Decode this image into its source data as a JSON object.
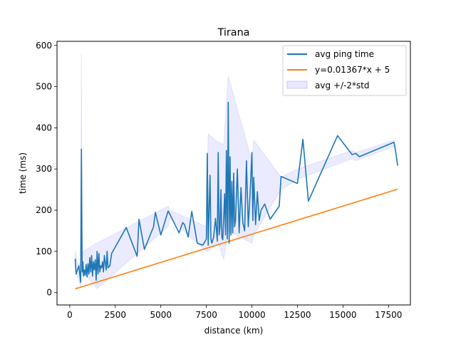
{
  "chart_data": {
    "type": "line",
    "title": "Tirana",
    "xlabel": "distance (km)",
    "ylabel": "time (ms)",
    "xlim": [
      -700,
      18700
    ],
    "ylim": [
      -30,
      610
    ],
    "xticks": [
      0,
      2500,
      5000,
      7500,
      10000,
      12500,
      15000,
      17500
    ],
    "yticks": [
      0,
      100,
      200,
      300,
      400,
      500,
      600
    ],
    "grid": false,
    "legend_position": "top-right",
    "series": [
      {
        "name": "avg ping time",
        "color": "#1f77b4",
        "x": [
          300,
          350,
          420,
          500,
          560,
          600,
          640,
          680,
          720,
          760,
          800,
          850,
          900,
          950,
          1000,
          1050,
          1100,
          1150,
          1200,
          1250,
          1300,
          1350,
          1400,
          1450,
          1500,
          1550,
          1600,
          1650,
          1700,
          1750,
          1800,
          1850,
          1900,
          2000,
          2050,
          2100,
          2200,
          2300,
          3100,
          3700,
          3800,
          4100,
          4600,
          4700,
          5000,
          5400,
          5500,
          6000,
          6200,
          6300,
          6500,
          6700,
          7000,
          7300,
          7500,
          7550,
          7600,
          7700,
          7750,
          7800,
          7900,
          8000,
          8100,
          8150,
          8200,
          8250,
          8300,
          8350,
          8400,
          8450,
          8500,
          8550,
          8600,
          8650,
          8700,
          8750,
          8800,
          8850,
          8900,
          8950,
          9000,
          9050,
          9100,
          9200,
          9300,
          9400,
          9500,
          9600,
          9700,
          9800,
          9900,
          10000,
          10050,
          10100,
          10200,
          10300,
          10400,
          10500,
          10700,
          11000,
          11500,
          11600,
          12500,
          12800,
          13100,
          14700,
          15500,
          15700,
          15900,
          17800,
          17900,
          18000
        ],
        "y": [
          82,
          45,
          55,
          65,
          40,
          25,
          348,
          50,
          75,
          40,
          55,
          42,
          68,
          38,
          70,
          45,
          85,
          50,
          90,
          40,
          75,
          55,
          80,
          30,
          100,
          45,
          95,
          50,
          65,
          60,
          75,
          50,
          90,
          55,
          100,
          60,
          65,
          95,
          158,
          88,
          178,
          105,
          160,
          195,
          140,
          198,
          190,
          145,
          170,
          165,
          135,
          197,
          120,
          115,
          130,
          338,
          115,
          285,
          130,
          120,
          135,
          180,
          125,
          340,
          140,
          160,
          250,
          135,
          128,
          180,
          240,
          140,
          345,
          130,
          462,
          120,
          330,
          140,
          270,
          145,
          290,
          160,
          175,
          300,
          145,
          255,
          170,
          150,
          320,
          160,
          240,
          340,
          175,
          280,
          165,
          245,
          175,
          200,
          215,
          178,
          210,
          282,
          265,
          372,
          222,
          381,
          335,
          338,
          330,
          365,
          340,
          308
        ],
        "band": {
          "name": "avg +/-2*std",
          "color": "#6666ff",
          "x": [
            300,
            420,
            560,
            600,
            640,
            680,
            720,
            1500,
            5400,
            5500,
            7500,
            7600,
            8150,
            8450,
            8700,
            10000,
            10100,
            11600,
            12500,
            15500,
            15700,
            17800
          ],
          "lower": [
            60,
            40,
            20,
            10,
            150,
            40,
            50,
            10,
            160,
            180,
            100,
            100,
            120,
            80,
            150,
            120,
            140,
            250,
            275,
            325,
            320,
            355
          ],
          "upper": [
            100,
            70,
            70,
            60,
            580,
            80,
            100,
            120,
            210,
            200,
            160,
            385,
            365,
            360,
            525,
            320,
            370,
            280,
            300,
            345,
            340,
            370
          ]
        }
      },
      {
        "name": "y=0.01367*x + 5",
        "color": "#ff7f0e",
        "x": [
          300,
          18000
        ],
        "y": [
          9.1,
          251.06
        ]
      }
    ]
  }
}
